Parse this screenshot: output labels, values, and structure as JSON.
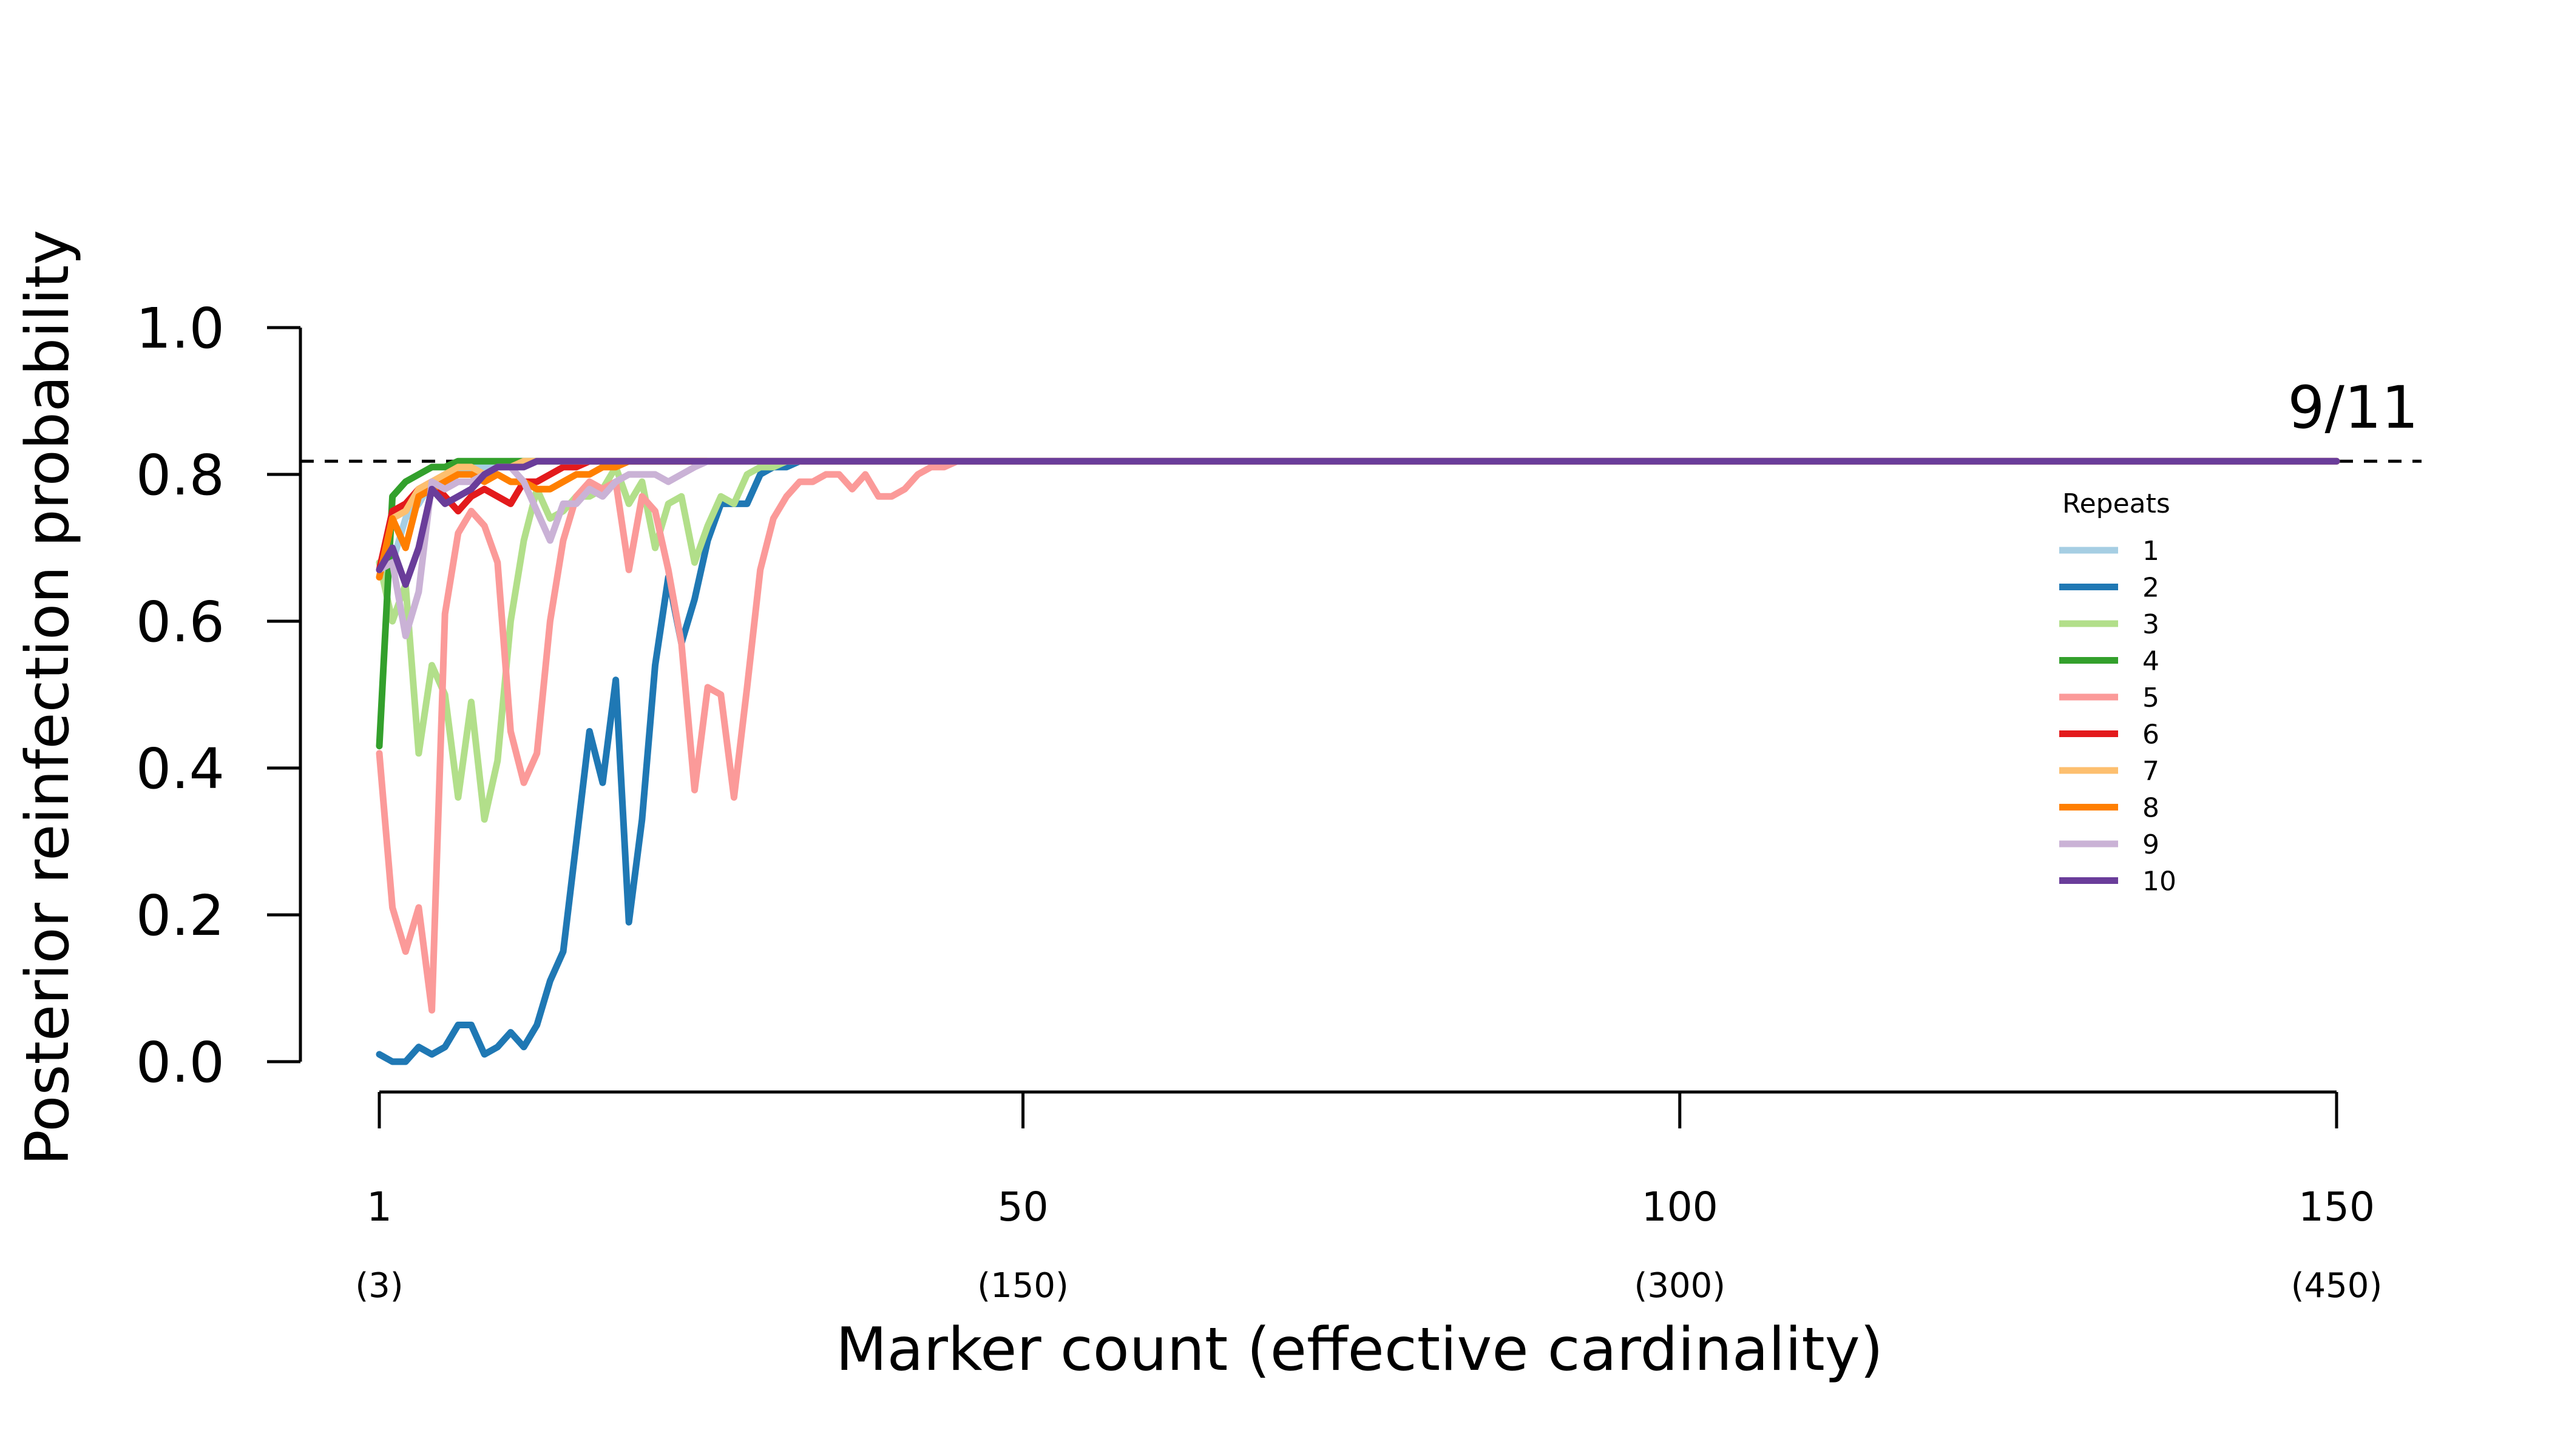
{
  "chart_data": {
    "type": "line",
    "xlabel": "Marker count (effective cardinality)",
    "ylabel": "Posterior reinfection probability",
    "xlim": [
      1,
      150
    ],
    "ylim": [
      0,
      1
    ],
    "x_ticks": [
      {
        "value": 1,
        "label": "1",
        "sublabel": "(3)"
      },
      {
        "value": 50,
        "label": "50",
        "sublabel": "(150)"
      },
      {
        "value": 100,
        "label": "100",
        "sublabel": "(300)"
      },
      {
        "value": 150,
        "label": "150",
        "sublabel": "(450)"
      }
    ],
    "y_ticks": [
      {
        "value": 0,
        "label": "0.0"
      },
      {
        "value": 0.2,
        "label": "0.2"
      },
      {
        "value": 0.4,
        "label": "0.4"
      },
      {
        "value": 0.6,
        "label": "0.6"
      },
      {
        "value": 0.8,
        "label": "0.8"
      },
      {
        "value": 1.0,
        "label": "1.0"
      }
    ],
    "reference_line": {
      "y": 0.818,
      "label": "9/11",
      "style": "dashed"
    },
    "grid": false,
    "legend": {
      "title": "Repeats",
      "placement": "right"
    },
    "plateau_value": 0.818,
    "series": [
      {
        "name": "1",
        "color": "#A6CEE3",
        "values": [
          0.67,
          0.68,
          0.74,
          0.76,
          0.79,
          0.8,
          0.8,
          0.81,
          0.81,
          0.81,
          0.818
        ]
      },
      {
        "name": "2",
        "color": "#1F78B4",
        "values": [
          0.01,
          0.0,
          0.0,
          0.02,
          0.01,
          0.02,
          0.05,
          0.05,
          0.01,
          0.02,
          0.04,
          0.02,
          0.05,
          0.11,
          0.15,
          0.3,
          0.45,
          0.38,
          0.52,
          0.19,
          0.33,
          0.54,
          0.66,
          0.57,
          0.63,
          0.71,
          0.76,
          0.76,
          0.76,
          0.8,
          0.81,
          0.81,
          0.818
        ]
      },
      {
        "name": "3",
        "color": "#B2DF8A",
        "values": [
          0.68,
          0.6,
          0.65,
          0.42,
          0.54,
          0.5,
          0.36,
          0.49,
          0.33,
          0.41,
          0.6,
          0.71,
          0.78,
          0.74,
          0.75,
          0.77,
          0.77,
          0.78,
          0.81,
          0.76,
          0.79,
          0.7,
          0.76,
          0.77,
          0.68,
          0.73,
          0.77,
          0.76,
          0.8,
          0.81,
          0.81,
          0.818
        ]
      },
      {
        "name": "4",
        "color": "#33A02C",
        "values": [
          0.43,
          0.77,
          0.79,
          0.8,
          0.81,
          0.81,
          0.818
        ]
      },
      {
        "name": "5",
        "color": "#FB9A99",
        "values": [
          0.42,
          0.21,
          0.15,
          0.21,
          0.07,
          0.61,
          0.72,
          0.75,
          0.73,
          0.68,
          0.45,
          0.38,
          0.42,
          0.6,
          0.71,
          0.77,
          0.79,
          0.78,
          0.79,
          0.67,
          0.77,
          0.75,
          0.67,
          0.57,
          0.37,
          0.51,
          0.5,
          0.36,
          0.51,
          0.67,
          0.74,
          0.77,
          0.79,
          0.79,
          0.8,
          0.8,
          0.78,
          0.8,
          0.77,
          0.77,
          0.78,
          0.8,
          0.81,
          0.81,
          0.818
        ]
      },
      {
        "name": "6",
        "color": "#E31A1C",
        "values": [
          0.67,
          0.75,
          0.76,
          0.78,
          0.79,
          0.77,
          0.75,
          0.77,
          0.78,
          0.77,
          0.76,
          0.79,
          0.79,
          0.8,
          0.81,
          0.81,
          0.818
        ]
      },
      {
        "name": "7",
        "color": "#FDBF6F",
        "values": [
          0.66,
          0.74,
          0.75,
          0.78,
          0.79,
          0.8,
          0.81,
          0.81,
          0.8,
          0.81,
          0.81,
          0.818
        ]
      },
      {
        "name": "8",
        "color": "#FF7F00",
        "values": [
          0.66,
          0.74,
          0.7,
          0.77,
          0.78,
          0.79,
          0.8,
          0.8,
          0.79,
          0.8,
          0.79,
          0.79,
          0.78,
          0.78,
          0.79,
          0.8,
          0.8,
          0.81,
          0.81,
          0.818
        ]
      },
      {
        "name": "9",
        "color": "#CAB2D6",
        "values": [
          0.67,
          0.68,
          0.58,
          0.64,
          0.79,
          0.78,
          0.79,
          0.79,
          0.8,
          0.81,
          0.81,
          0.79,
          0.75,
          0.71,
          0.76,
          0.76,
          0.78,
          0.77,
          0.79,
          0.8,
          0.8,
          0.8,
          0.79,
          0.8,
          0.81,
          0.818
        ]
      },
      {
        "name": "10",
        "color": "#6A3D9A",
        "values": [
          0.67,
          0.7,
          0.65,
          0.7,
          0.78,
          0.76,
          0.77,
          0.78,
          0.8,
          0.81,
          0.81,
          0.81,
          0.818
        ]
      }
    ]
  }
}
